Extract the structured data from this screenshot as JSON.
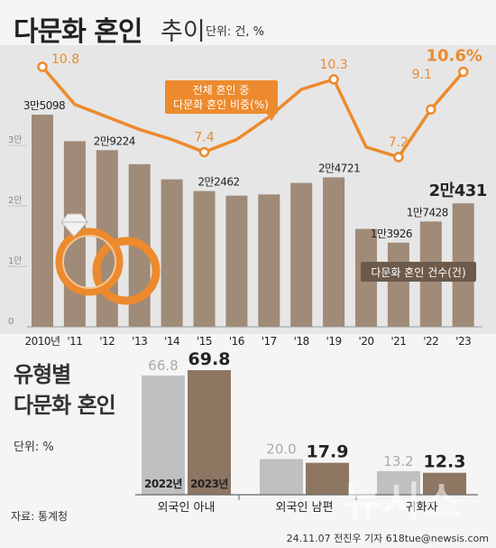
{
  "title": {
    "main": "다문화 혼인",
    "sub": "추이",
    "unit": "단위: 건, %"
  },
  "section2": {
    "title_line1": "유형별",
    "title_line2": "다문화 혼인",
    "unit": "단위: %"
  },
  "source": "자료: 통계청",
  "credit": "24.11.07 전진우 기자 618tue@newsis.com",
  "watermark": "뉴시스",
  "colors": {
    "bar": "#a08a78",
    "bar_dark": "#8d7763",
    "line": "#ec8a2d",
    "grey_bar": "#c0c0c0",
    "panel": "#e6e6e6"
  },
  "chart_data": [
    {
      "type": "bar+line",
      "categories": [
        "2010년",
        "'11",
        "'12",
        "'13",
        "'14",
        "'15",
        "'16",
        "'17",
        "'18",
        "'19",
        "'20",
        "'21",
        "'22",
        "'23"
      ],
      "series": [
        {
          "name": "다문화 혼인 건수(건)",
          "type": "bar",
          "values": [
            35098,
            30700,
            29224,
            26900,
            24400,
            22462,
            21700,
            21900,
            23800,
            24721,
            16200,
            13926,
            17428,
            20431
          ]
        },
        {
          "name": "전체 혼인 중 다문화 혼인 비중(%)",
          "type": "line",
          "values": [
            10.8,
            9.3,
            8.8,
            8.3,
            7.9,
            7.4,
            7.9,
            8.8,
            9.9,
            10.3,
            7.6,
            7.2,
            9.1,
            10.6
          ]
        }
      ],
      "bar_labels": [
        {
          "index": 0,
          "text": "3만5098"
        },
        {
          "index": 2,
          "text": "2만9224"
        },
        {
          "index": 5,
          "text": "2만2462"
        },
        {
          "index": 9,
          "text": "2만4721"
        },
        {
          "index": 11,
          "text": "1만3926"
        },
        {
          "index": 12,
          "text": "1만7428"
        },
        {
          "index": 13,
          "text": "2만431"
        }
      ],
      "line_labels": [
        {
          "index": 0,
          "text": "10.8"
        },
        {
          "index": 5,
          "text": "7.4"
        },
        {
          "index": 9,
          "text": "10.3"
        },
        {
          "index": 11,
          "text": "7.2"
        },
        {
          "index": 12,
          "text": "9.1"
        },
        {
          "index": 13,
          "text": "10.6%"
        }
      ],
      "yticks": [
        "0",
        "1만",
        "2만",
        "3만"
      ],
      "ylim": [
        0,
        35000
      ],
      "line_legend": [
        "전체 혼인 중",
        "다문화 혼인 비중(%)"
      ],
      "bar_legend": "다문화 혼인 건수(건)"
    },
    {
      "type": "bar",
      "categories": [
        "외국인 아내",
        "외국인 남편",
        "귀화자"
      ],
      "series": [
        {
          "name": "2022년",
          "values": [
            66.8,
            20.0,
            13.2
          ],
          "labels": [
            "66.8",
            "20.0",
            "13.2"
          ]
        },
        {
          "name": "2023년",
          "values": [
            69.8,
            17.9,
            12.3
          ],
          "labels": [
            "69.8",
            "17.9",
            "12.3"
          ]
        }
      ]
    }
  ]
}
